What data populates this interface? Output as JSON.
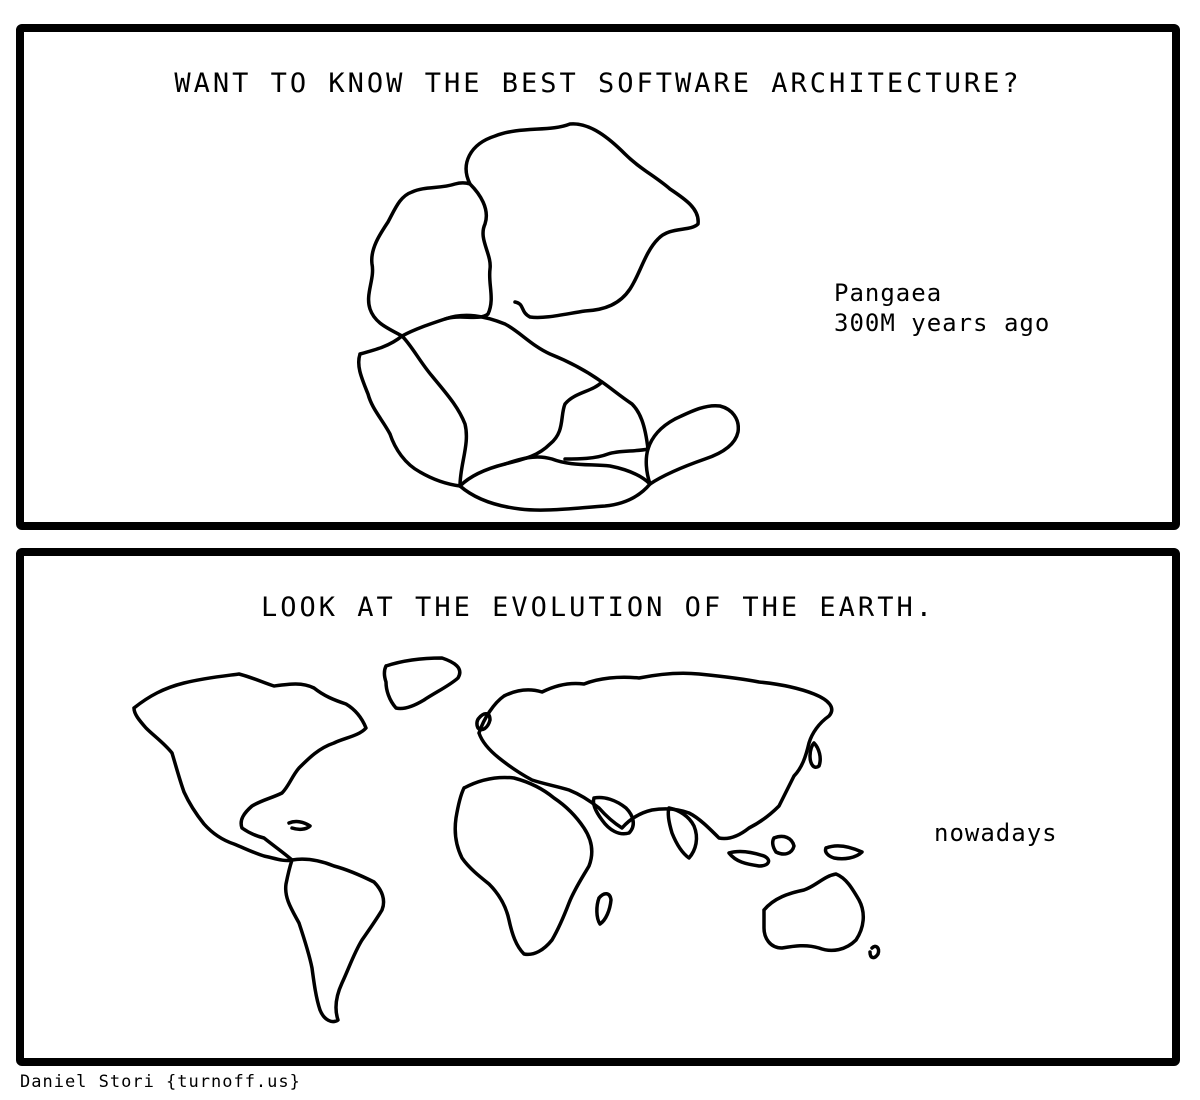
{
  "panels": {
    "top": {
      "title": "WANT TO KNOW THE BEST SOFTWARE ARCHITECTURE?",
      "caption_line1": "Pangaea",
      "caption_line2": "300M years ago"
    },
    "bottom": {
      "title": "LOOK AT THE EVOLUTION OF THE EARTH.",
      "caption": "nowadays"
    }
  },
  "credit": "Daniel Stori {turnoff.us}",
  "colors": {
    "ink": "#000000",
    "paper": "#ffffff"
  }
}
